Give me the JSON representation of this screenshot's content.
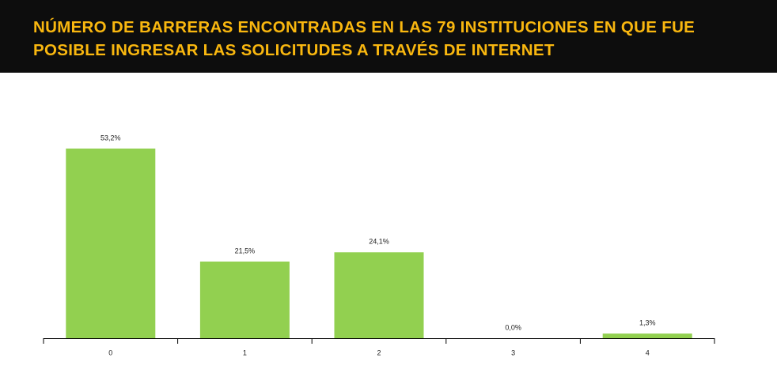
{
  "chart_data": {
    "type": "bar",
    "title": "NÚMERO DE BARRERAS ENCONTRADAS EN LAS 79 INSTITUCIONES EN QUE FUE POSIBLE INGRESAR LAS SOLICITUDES A TRAVÉS DE INTERNET",
    "categories": [
      "0",
      "1",
      "2",
      "3",
      "4"
    ],
    "values": [
      53.2,
      21.5,
      24.1,
      0.0,
      1.3
    ],
    "value_labels": [
      "53,2%",
      "21,5%",
      "24,1%",
      "0,0%",
      "1,3%"
    ],
    "color": "#92d050"
  }
}
